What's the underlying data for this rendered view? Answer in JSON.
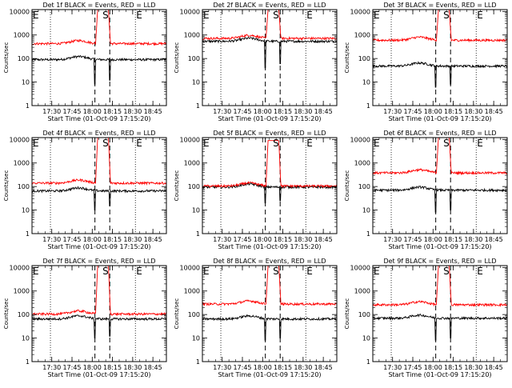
{
  "colors": {
    "events": "#000000",
    "lld": "#ff0000",
    "background": "#ffffff",
    "axes": "#000000"
  },
  "chart_data": [
    {
      "type": "line",
      "title": "Det 1f BLACK = Events, RED = LLD",
      "xlabel": "Start Time (01-Oct-09 17:15:20)",
      "ylabel": "Counts/sec",
      "y_scale": "log",
      "ylim": [
        1,
        12000
      ],
      "xlim": [
        "17:15:20",
        "18:55"
      ],
      "x_ticks": [
        "17:30",
        "17:45",
        "18:00",
        "18:15",
        "18:30",
        "18:45"
      ],
      "y_ticks": [
        "1",
        "10",
        "100",
        "1000",
        "10000"
      ],
      "markers": [
        {
          "label": "E",
          "time": "17:15:20"
        },
        {
          "label": "S",
          "time": "18:07"
        },
        {
          "label": "E",
          "time": "18:32"
        }
      ],
      "dashed_lines": [
        "18:02",
        "18:13"
      ],
      "dotted_lines": [
        "17:29",
        "18:32"
      ],
      "series": [
        {
          "name": "Events",
          "color": "#000000",
          "baseline": 90,
          "peak": null,
          "spikes": [
            [
              "18:02",
              8
            ],
            [
              "18:13",
              12
            ]
          ]
        },
        {
          "name": "LLD",
          "color": "#ff0000",
          "baseline": 430,
          "peak": 12000,
          "peak_window": [
            "18:04",
            "18:12"
          ]
        }
      ]
    },
    {
      "type": "line",
      "title": "Det 2f BLACK = Events, RED = LLD",
      "xlabel": "Start Time (01-Oct-09 17:15:20)",
      "ylabel": "Counts/sec",
      "y_scale": "log",
      "ylim": [
        1,
        12000
      ],
      "xlim": [
        "17:15:20",
        "18:55"
      ],
      "x_ticks": [
        "17:30",
        "17:45",
        "18:00",
        "18:15",
        "18:30",
        "18:45"
      ],
      "y_ticks": [
        "1",
        "10",
        "100",
        "1000",
        "10000"
      ],
      "markers": [
        {
          "label": "E",
          "time": "17:15:20"
        },
        {
          "label": "S",
          "time": "18:07"
        },
        {
          "label": "E",
          "time": "18:32"
        }
      ],
      "dashed_lines": [
        "18:02",
        "18:13"
      ],
      "dotted_lines": [
        "17:29",
        "18:32"
      ],
      "series": [
        {
          "name": "Events",
          "color": "#000000",
          "baseline": 540,
          "peak": null,
          "spikes": [
            [
              "18:02",
              40
            ],
            [
              "18:13",
              60
            ]
          ]
        },
        {
          "name": "LLD",
          "color": "#ff0000",
          "baseline": 720,
          "peak": 12000,
          "peak_window": [
            "18:04",
            "18:12"
          ]
        }
      ]
    },
    {
      "type": "line",
      "title": "Det 3f BLACK = Events, RED = LLD",
      "xlabel": "Start Time (01-Oct-09 17:15:20)",
      "ylabel": "Counts/sec",
      "y_scale": "log",
      "ylim": [
        1,
        12000
      ],
      "xlim": [
        "17:15:20",
        "18:55"
      ],
      "x_ticks": [
        "17:30",
        "17:45",
        "18:00",
        "18:15",
        "18:30",
        "18:45"
      ],
      "y_ticks": [
        "1",
        "10",
        "100",
        "1000",
        "10000"
      ],
      "markers": [
        {
          "label": "E",
          "time": "17:15:20"
        },
        {
          "label": "S",
          "time": "18:07"
        },
        {
          "label": "E",
          "time": "18:32"
        }
      ],
      "dashed_lines": [
        "18:02",
        "18:13"
      ],
      "dotted_lines": [
        "17:29",
        "18:32"
      ],
      "series": [
        {
          "name": "Events",
          "color": "#000000",
          "baseline": 48,
          "peak": null,
          "spikes": [
            [
              "18:02",
              6
            ],
            [
              "18:13",
              8
            ]
          ]
        },
        {
          "name": "LLD",
          "color": "#ff0000",
          "baseline": 600,
          "peak": 12000,
          "peak_window": [
            "18:04",
            "18:12"
          ]
        }
      ]
    },
    {
      "type": "line",
      "title": "Det 4f BLACK = Events, RED = LLD",
      "xlabel": "Start Time (01-Oct-09 17:15:20)",
      "ylabel": "Counts/sec",
      "y_scale": "log",
      "ylim": [
        1,
        12000
      ],
      "xlim": [
        "17:15:20",
        "18:55"
      ],
      "x_ticks": [
        "17:30",
        "17:45",
        "18:00",
        "18:15",
        "18:30",
        "18:45"
      ],
      "y_ticks": [
        "1",
        "10",
        "100",
        "1000",
        "10000"
      ],
      "markers": [
        {
          "label": "E",
          "time": "17:15:20"
        },
        {
          "label": "S",
          "time": "18:07"
        },
        {
          "label": "E",
          "time": "18:32"
        }
      ],
      "dashed_lines": [
        "18:02",
        "18:13"
      ],
      "dotted_lines": [
        "17:29",
        "18:32"
      ],
      "series": [
        {
          "name": "Events",
          "color": "#000000",
          "baseline": 65,
          "peak": null,
          "spikes": [
            [
              "18:02",
              10
            ],
            [
              "18:13",
              15
            ]
          ]
        },
        {
          "name": "LLD",
          "color": "#ff0000",
          "baseline": 140,
          "peak": 12000,
          "peak_window": [
            "18:04",
            "18:12"
          ]
        }
      ]
    },
    {
      "type": "line",
      "title": "Det 5f BLACK = Events, RED = LLD",
      "xlabel": "Start Time (01-Oct-09 17:15:20)",
      "ylabel": "Counts/sec",
      "y_scale": "log",
      "ylim": [
        1,
        12000
      ],
      "xlim": [
        "17:15:20",
        "18:55"
      ],
      "x_ticks": [
        "17:30",
        "17:45",
        "18:00",
        "18:15",
        "18:30",
        "18:45"
      ],
      "y_ticks": [
        "1",
        "10",
        "100",
        "1000",
        "10000"
      ],
      "markers": [
        {
          "label": "E",
          "time": "17:15:20"
        },
        {
          "label": "S",
          "time": "18:07"
        },
        {
          "label": "E",
          "time": "18:32"
        }
      ],
      "dashed_lines": [
        "18:02",
        "18:13"
      ],
      "dotted_lines": [
        "17:29",
        "18:32"
      ],
      "series": [
        {
          "name": "Events",
          "color": "#000000",
          "baseline": 95,
          "peak": null,
          "spikes": [
            [
              "18:02",
              20
            ],
            [
              "18:13",
              25
            ]
          ]
        },
        {
          "name": "LLD",
          "color": "#ff0000",
          "baseline": 105,
          "peak": 9000,
          "peak_window": [
            "18:04",
            "18:12"
          ]
        }
      ]
    },
    {
      "type": "line",
      "title": "Det 6f BLACK = Events, RED = LLD",
      "xlabel": "Start Time (01-Oct-09 17:15:20)",
      "ylabel": "Counts/sec",
      "y_scale": "log",
      "ylim": [
        1,
        12000
      ],
      "xlim": [
        "17:15:20",
        "18:55"
      ],
      "x_ticks": [
        "17:30",
        "17:45",
        "18:00",
        "18:15",
        "18:30",
        "18:45"
      ],
      "y_ticks": [
        "1",
        "10",
        "100",
        "1000",
        "10000"
      ],
      "markers": [
        {
          "label": "E",
          "time": "17:15:20"
        },
        {
          "label": "S",
          "time": "18:07"
        },
        {
          "label": "E",
          "time": "18:32"
        }
      ],
      "dashed_lines": [
        "18:02",
        "18:13"
      ],
      "dotted_lines": [
        "17:29",
        "18:32"
      ],
      "series": [
        {
          "name": "Events",
          "color": "#000000",
          "baseline": 70,
          "peak": null,
          "spikes": [
            [
              "18:02",
              8
            ],
            [
              "18:13",
              10
            ]
          ]
        },
        {
          "name": "LLD",
          "color": "#ff0000",
          "baseline": 380,
          "peak": 12000,
          "peak_window": [
            "18:04",
            "18:12"
          ]
        }
      ]
    },
    {
      "type": "line",
      "title": "Det 7f BLACK = Events, RED = LLD",
      "xlabel": "Start Time (01-Oct-09 17:15:20)",
      "ylabel": "Counts/sec",
      "y_scale": "log",
      "ylim": [
        1,
        12000
      ],
      "xlim": [
        "17:15:20",
        "18:55"
      ],
      "x_ticks": [
        "17:30",
        "17:45",
        "18:00",
        "18:15",
        "18:30",
        "18:45"
      ],
      "y_ticks": [
        "1",
        "10",
        "100",
        "1000",
        "10000"
      ],
      "markers": [
        {
          "label": "E",
          "time": "17:15:20"
        },
        {
          "label": "S",
          "time": "18:07"
        },
        {
          "label": "E",
          "time": "18:32"
        }
      ],
      "dashed_lines": [
        "18:02",
        "18:13"
      ],
      "dotted_lines": [
        "17:29",
        "18:32"
      ],
      "series": [
        {
          "name": "Events",
          "color": "#000000",
          "baseline": 65,
          "peak": null,
          "spikes": [
            [
              "18:02",
              10
            ],
            [
              "18:13",
              12
            ]
          ]
        },
        {
          "name": "LLD",
          "color": "#ff0000",
          "baseline": 105,
          "peak": 12000,
          "peak_window": [
            "18:04",
            "18:12"
          ]
        }
      ]
    },
    {
      "type": "line",
      "title": "Det 8f BLACK = Events, RED = LLD",
      "xlabel": "Start Time (01-Oct-09 17:15:20)",
      "ylabel": "Counts/sec",
      "y_scale": "log",
      "ylim": [
        1,
        12000
      ],
      "xlim": [
        "17:15:20",
        "18:55"
      ],
      "x_ticks": [
        "17:30",
        "17:45",
        "18:00",
        "18:15",
        "18:30",
        "18:45"
      ],
      "y_ticks": [
        "1",
        "10",
        "100",
        "1000",
        "10000"
      ],
      "markers": [
        {
          "label": "E",
          "time": "17:15:20"
        },
        {
          "label": "S",
          "time": "18:07"
        },
        {
          "label": "E",
          "time": "18:32"
        }
      ],
      "dashed_lines": [
        "18:02",
        "18:13"
      ],
      "dotted_lines": [
        "17:29",
        "18:32"
      ],
      "series": [
        {
          "name": "Events",
          "color": "#000000",
          "baseline": 65,
          "peak": null,
          "spikes": [
            [
              "18:02",
              8
            ],
            [
              "18:13",
              10
            ]
          ]
        },
        {
          "name": "LLD",
          "color": "#ff0000",
          "baseline": 280,
          "peak": 12000,
          "peak_window": [
            "18:04",
            "18:12"
          ]
        }
      ]
    },
    {
      "type": "line",
      "title": "Det 9f BLACK = Events, RED = LLD",
      "xlabel": "Start Time (01-Oct-09 17:15:20)",
      "ylabel": "Counts/sec",
      "y_scale": "log",
      "ylim": [
        1,
        12000
      ],
      "xlim": [
        "17:15:20",
        "18:55"
      ],
      "x_ticks": [
        "17:30",
        "17:45",
        "18:00",
        "18:15",
        "18:30",
        "18:45"
      ],
      "y_ticks": [
        "1",
        "10",
        "100",
        "1000",
        "10000"
      ],
      "markers": [
        {
          "label": "E",
          "time": "17:15:20"
        },
        {
          "label": "S",
          "time": "18:07"
        },
        {
          "label": "E",
          "time": "18:32"
        }
      ],
      "dashed_lines": [
        "18:02",
        "18:13"
      ],
      "dotted_lines": [
        "17:29",
        "18:32"
      ],
      "series": [
        {
          "name": "Events",
          "color": "#000000",
          "baseline": 70,
          "peak": null,
          "spikes": [
            [
              "18:02",
              8
            ],
            [
              "18:13",
              10
            ]
          ]
        },
        {
          "name": "LLD",
          "color": "#ff0000",
          "baseline": 260,
          "peak": 12000,
          "peak_window": [
            "18:04",
            "18:12"
          ]
        }
      ]
    }
  ]
}
